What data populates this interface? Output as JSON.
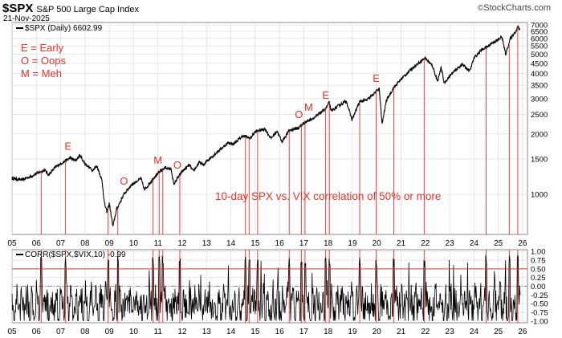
{
  "header": {
    "symbol": "$SPX",
    "name": "S&P 500 Large Cap Index",
    "date": "21-Nov-2025",
    "brand": "StockCharts.com",
    "copyright": "©"
  },
  "upper_panel": {
    "label": "$SPX (Daily) 6602.99",
    "notes": [
      "E = Early",
      "O = Oops",
      "M = Meh"
    ],
    "correlation_note": "10-day SPX vs. VIX correlation of 50% or more"
  },
  "lower_panel": {
    "label": "CORR($SPX,$VIX,10) -0.99"
  },
  "colors": {
    "price": "#000000",
    "annotation": "#e8322c",
    "grid": "#dcdcdc",
    "threshold": "#e8322c"
  },
  "chart_data": [
    {
      "type": "line",
      "series": [
        {
          "name": "$SPX (Daily)",
          "points": [
            [
              2005.0,
              1200
            ],
            [
              2005.4,
              1180
            ],
            [
              2005.8,
              1230
            ],
            [
              2006.0,
              1270
            ],
            [
              2006.35,
              1320
            ],
            [
              2006.5,
              1250
            ],
            [
              2006.8,
              1370
            ],
            [
              2007.0,
              1420
            ],
            [
              2007.4,
              1520
            ],
            [
              2007.6,
              1470
            ],
            [
              2007.8,
              1560
            ],
            [
              2008.0,
              1420
            ],
            [
              2008.3,
              1320
            ],
            [
              2008.5,
              1380
            ],
            [
              2008.7,
              1170
            ],
            [
              2008.8,
              900
            ],
            [
              2008.9,
              820
            ],
            [
              2009.0,
              900
            ],
            [
              2009.15,
              690
            ],
            [
              2009.3,
              840
            ],
            [
              2009.6,
              1000
            ],
            [
              2009.9,
              1110
            ],
            [
              2010.3,
              1200
            ],
            [
              2010.45,
              1050
            ],
            [
              2010.7,
              1150
            ],
            [
              2010.9,
              1240
            ],
            [
              2011.3,
              1360
            ],
            [
              2011.55,
              1330
            ],
            [
              2011.65,
              1120
            ],
            [
              2011.8,
              1200
            ],
            [
              2012.0,
              1300
            ],
            [
              2012.3,
              1400
            ],
            [
              2012.45,
              1300
            ],
            [
              2012.7,
              1440
            ],
            [
              2012.9,
              1400
            ],
            [
              2013.0,
              1460
            ],
            [
              2013.5,
              1650
            ],
            [
              2013.9,
              1810
            ],
            [
              2014.1,
              1780
            ],
            [
              2014.5,
              1960
            ],
            [
              2014.8,
              1900
            ],
            [
              2015.0,
              2050
            ],
            [
              2015.4,
              2120
            ],
            [
              2015.65,
              1900
            ],
            [
              2015.9,
              2070
            ],
            [
              2016.1,
              1830
            ],
            [
              2016.4,
              2080
            ],
            [
              2016.8,
              2150
            ],
            [
              2017.0,
              2270
            ],
            [
              2017.5,
              2440
            ],
            [
              2017.9,
              2680
            ],
            [
              2018.05,
              2870
            ],
            [
              2018.12,
              2600
            ],
            [
              2018.5,
              2800
            ],
            [
              2018.75,
              2920
            ],
            [
              2018.98,
              2350
            ],
            [
              2019.3,
              2900
            ],
            [
              2019.6,
              2950
            ],
            [
              2019.95,
              3230
            ],
            [
              2020.1,
              3380
            ],
            [
              2020.22,
              2240
            ],
            [
              2020.4,
              2950
            ],
            [
              2020.7,
              3400
            ],
            [
              2021.0,
              3750
            ],
            [
              2021.5,
              4300
            ],
            [
              2021.99,
              4790
            ],
            [
              2022.3,
              4350
            ],
            [
              2022.5,
              3670
            ],
            [
              2022.65,
              4280
            ],
            [
              2022.78,
              3580
            ],
            [
              2023.0,
              3900
            ],
            [
              2023.5,
              4450
            ],
            [
              2023.83,
              4120
            ],
            [
              2024.0,
              4780
            ],
            [
              2024.3,
              5250
            ],
            [
              2024.6,
              5500
            ],
            [
              2024.75,
              5700
            ],
            [
              2025.0,
              5900
            ],
            [
              2025.15,
              6100
            ],
            [
              2025.3,
              5000
            ],
            [
              2025.5,
              6000
            ],
            [
              2025.75,
              6600
            ],
            [
              2025.8,
              6850
            ],
            [
              2025.89,
              6603
            ]
          ]
        }
      ],
      "x_ticks": [
        "05",
        "06",
        "07",
        "08",
        "09",
        "10",
        "11",
        "12",
        "13",
        "14",
        "15",
        "16",
        "17",
        "18",
        "19",
        "20",
        "21",
        "22",
        "23",
        "24",
        "25",
        "26"
      ],
      "y_ticks": [
        1000,
        1500,
        2000,
        2500,
        3000,
        3500,
        4000,
        4500,
        5000,
        5500,
        6000,
        6500,
        7000
      ],
      "xlim": [
        2005.0,
        2026.2
      ],
      "ylim": [
        630,
        7200
      ],
      "yscale": "log",
      "grid": true,
      "annotations": [
        {
          "text": "E",
          "x": 2007.3
        },
        {
          "text": "O",
          "x": 2009.6
        },
        {
          "text": "M",
          "x": 2011.0
        },
        {
          "text": "O",
          "x": 2011.8
        },
        {
          "text": "O",
          "x": 2016.8
        },
        {
          "text": "M",
          "x": 2017.2
        },
        {
          "text": "E",
          "x": 2017.9
        },
        {
          "text": "E",
          "x": 2019.98
        }
      ],
      "signal_dates": [
        2006.2,
        2007.2,
        2008.95,
        2009.35,
        2010.8,
        2011.05,
        2011.2,
        2011.9,
        2014.6,
        2014.75,
        2015.1,
        2016.4,
        2016.9,
        2017.05,
        2017.9,
        2018.05,
        2019.3,
        2019.98,
        2020.7,
        2021.95,
        2024.5,
        2025.45,
        2025.8
      ]
    },
    {
      "type": "line",
      "series": [
        {
          "name": "CORR($SPX,$VIX,10)"
        }
      ],
      "x_ticks": [
        "05",
        "06",
        "07",
        "08",
        "09",
        "10",
        "11",
        "12",
        "13",
        "14",
        "15",
        "16",
        "17",
        "18",
        "19",
        "20",
        "21",
        "22",
        "23",
        "24",
        "25",
        "26"
      ],
      "y_ticks": [
        "1.00",
        "0.75",
        "0.50",
        "0.25",
        "0.00",
        "-0.25",
        "-0.50",
        "-0.75",
        "-1.00"
      ],
      "ylim": [
        -1.05,
        1.05
      ],
      "threshold": 0.5,
      "grid": true
    }
  ]
}
